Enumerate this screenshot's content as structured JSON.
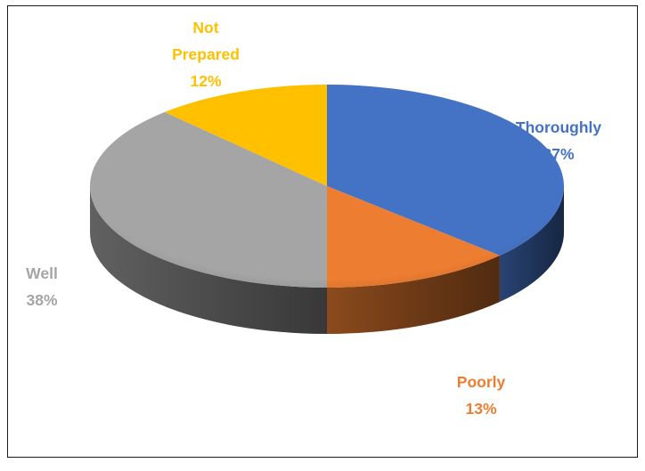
{
  "chart_data": {
    "type": "pie",
    "style": "3d",
    "slices": [
      {
        "label": "Thoroughly",
        "pct_label": "37%",
        "value": 37,
        "color": "#4472c4"
      },
      {
        "label": "Poorly",
        "pct_label": "13%",
        "value": 13,
        "color": "#ed7d31"
      },
      {
        "label": "Well",
        "pct_label": "38%",
        "value": 38,
        "color": "#a5a5a5"
      },
      {
        "label": "Not Prepared",
        "label_lines": [
          "Not",
          "Prepared"
        ],
        "pct_label": "12%",
        "value": 12,
        "color": "#ffc000"
      }
    ]
  }
}
